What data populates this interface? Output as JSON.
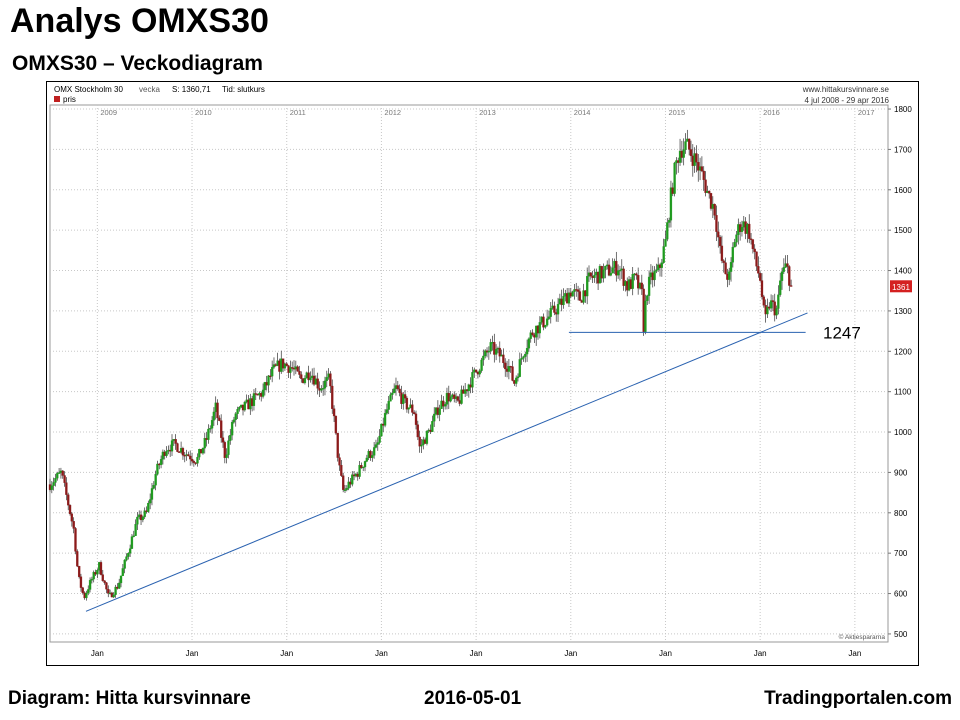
{
  "header": {
    "title": "Analys OMXS30",
    "subtitle": "OMXS30 – Veckodiagram"
  },
  "footer": {
    "source": "Diagram: Hitta kursvinnare",
    "date": "2016-05-01",
    "site": "Tradingportalen.com"
  },
  "chart_data": {
    "type": "candlestick",
    "title": "OMX Stockholm 30",
    "period_label": "vecka",
    "last_label": "S: 1360,71",
    "mode_label": "Tid: slutkurs",
    "source_url": "www.hittakursvinnare.se",
    "range_label": "4 jul 2008 - 29 apr 2016",
    "legend": "pris",
    "watermark": "© Aktiespararna",
    "last_value": 1361,
    "last_value_label": "1361",
    "ylim": [
      480,
      1810
    ],
    "y_ticks": [
      500,
      600,
      700,
      800,
      900,
      1000,
      1100,
      1200,
      1300,
      1400,
      1500,
      1600,
      1700,
      1800
    ],
    "x_start": 2008.5,
    "x_end": 2017.35,
    "year_labels": [
      "2009",
      "2010",
      "2011",
      "2012",
      "2013",
      "2014",
      "2015",
      "2016",
      "2017"
    ],
    "month_label": "Jan",
    "grid": true,
    "accent_up": "#1f9a1f",
    "accent_down": "#8b1a1a",
    "price_path": [
      [
        2008.5,
        870
      ],
      [
        2008.62,
        900
      ],
      [
        2008.75,
        760
      ],
      [
        2008.8,
        640
      ],
      [
        2008.86,
        590
      ],
      [
        2008.93,
        630
      ],
      [
        2009.02,
        670
      ],
      [
        2009.12,
        590
      ],
      [
        2009.22,
        620
      ],
      [
        2009.32,
        700
      ],
      [
        2009.42,
        780
      ],
      [
        2009.52,
        800
      ],
      [
        2009.62,
        900
      ],
      [
        2009.72,
        960
      ],
      [
        2009.82,
        970
      ],
      [
        2009.92,
        950
      ],
      [
        2010.05,
        930
      ],
      [
        2010.15,
        980
      ],
      [
        2010.25,
        1060
      ],
      [
        2010.35,
        940
      ],
      [
        2010.45,
        1040
      ],
      [
        2010.55,
        1060
      ],
      [
        2010.65,
        1080
      ],
      [
        2010.75,
        1100
      ],
      [
        2010.85,
        1150
      ],
      [
        2010.95,
        1170
      ],
      [
        2011.05,
        1160
      ],
      [
        2011.15,
        1130
      ],
      [
        2011.25,
        1150
      ],
      [
        2011.35,
        1110
      ],
      [
        2011.45,
        1130
      ],
      [
        2011.5,
        1030
      ],
      [
        2011.55,
        920
      ],
      [
        2011.6,
        850
      ],
      [
        2011.65,
        870
      ],
      [
        2011.75,
        900
      ],
      [
        2011.85,
        940
      ],
      [
        2011.95,
        960
      ],
      [
        2012.05,
        1050
      ],
      [
        2012.15,
        1110
      ],
      [
        2012.25,
        1070
      ],
      [
        2012.35,
        1050
      ],
      [
        2012.4,
        960
      ],
      [
        2012.5,
        1000
      ],
      [
        2012.6,
        1060
      ],
      [
        2012.7,
        1090
      ],
      [
        2012.8,
        1070
      ],
      [
        2012.95,
        1130
      ],
      [
        2013.05,
        1170
      ],
      [
        2013.15,
        1210
      ],
      [
        2013.25,
        1190
      ],
      [
        2013.35,
        1160
      ],
      [
        2013.4,
        1120
      ],
      [
        2013.5,
        1200
      ],
      [
        2013.6,
        1250
      ],
      [
        2013.75,
        1280
      ],
      [
        2013.9,
        1320
      ],
      [
        2014.0,
        1350
      ],
      [
        2014.1,
        1330
      ],
      [
        2014.2,
        1380
      ],
      [
        2014.3,
        1390
      ],
      [
        2014.4,
        1400
      ],
      [
        2014.5,
        1410
      ],
      [
        2014.6,
        1360
      ],
      [
        2014.68,
        1380
      ],
      [
        2014.75,
        1340
      ],
      [
        2014.77,
        1260
      ],
      [
        2014.8,
        1350
      ],
      [
        2014.85,
        1380
      ],
      [
        2014.93,
        1400
      ],
      [
        2015.0,
        1470
      ],
      [
        2015.05,
        1570
      ],
      [
        2015.1,
        1650
      ],
      [
        2015.15,
        1700
      ],
      [
        2015.22,
        1710
      ],
      [
        2015.3,
        1680
      ],
      [
        2015.38,
        1640
      ],
      [
        2015.45,
        1590
      ],
      [
        2015.52,
        1550
      ],
      [
        2015.58,
        1440
      ],
      [
        2015.62,
        1400
      ],
      [
        2015.68,
        1380
      ],
      [
        2015.72,
        1470
      ],
      [
        2015.8,
        1520
      ],
      [
        2015.88,
        1500
      ],
      [
        2015.95,
        1420
      ],
      [
        2016.0,
        1380
      ],
      [
        2016.05,
        1270
      ],
      [
        2016.1,
        1320
      ],
      [
        2016.18,
        1300
      ],
      [
        2016.22,
        1390
      ],
      [
        2016.28,
        1410
      ],
      [
        2016.33,
        1361
      ]
    ],
    "annotations": {
      "support_label": "1247",
      "support_level": 1247,
      "support_x_range": [
        2013.98,
        2016.48
      ],
      "trendline": [
        [
          2008.88,
          556
        ],
        [
          2016.5,
          1295
        ]
      ]
    }
  }
}
